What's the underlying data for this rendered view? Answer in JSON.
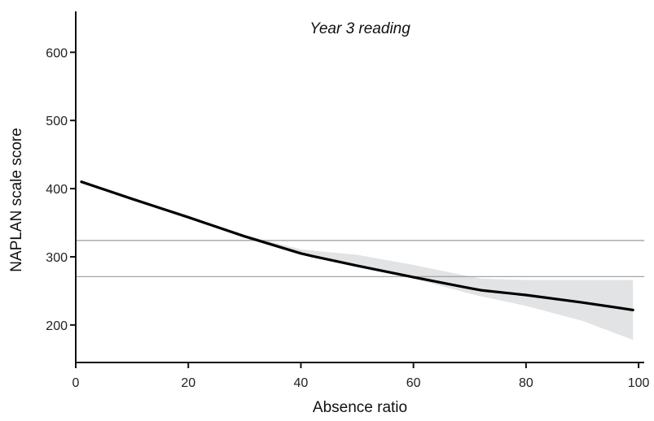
{
  "chart_data": {
    "type": "line",
    "title": "Year 3 reading",
    "xlabel": "Absence ratio",
    "ylabel": "NAPLAN scale score",
    "xlim": [
      0,
      101
    ],
    "ylim": [
      145,
      660
    ],
    "xticks": [
      0,
      20,
      40,
      60,
      80,
      100
    ],
    "yticks": [
      200,
      300,
      400,
      500,
      600
    ],
    "grid": false,
    "series": [
      {
        "x": [
          1,
          10,
          20,
          30,
          40,
          42,
          50,
          60,
          70,
          72,
          80,
          90,
          99
        ],
        "y": [
          410,
          385,
          358,
          330,
          305,
          301,
          287,
          270,
          254,
          251,
          244,
          233,
          222
        ],
        "band_lower": [
          410,
          385,
          358,
          331,
          306,
          302,
          287,
          268,
          246,
          242,
          228,
          206,
          178
        ],
        "band_upper": [
          410,
          385,
          358,
          332,
          311,
          309,
          303,
          288,
          271,
          268,
          266,
          266,
          266
        ]
      }
    ],
    "reference_lines": [
      324,
      271
    ],
    "colors": {
      "line": "#000000",
      "band": "#e2e3e5",
      "reference": "#9a9a9a",
      "axis": "#111111"
    }
  }
}
